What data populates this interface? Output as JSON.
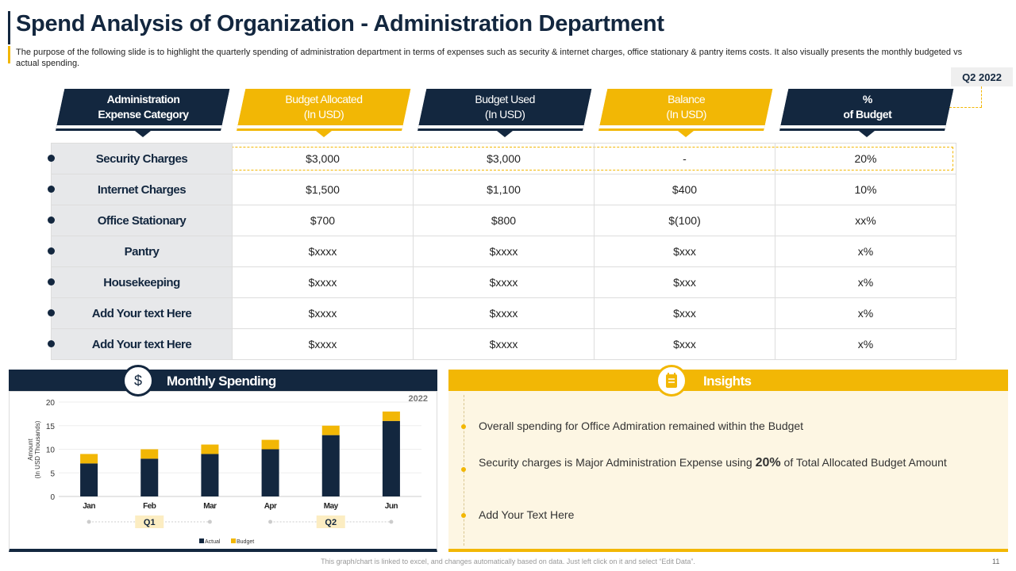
{
  "title": "Spend Analysis of Organization - Administration Department",
  "subtitle": "The purpose of the following slide is to highlight the quarterly spending of administration department in terms of expenses such as security & internet charges, office stationary & pantry items costs. It also visually presents the monthly budgeted vs actual spending.",
  "period_badge": "Q2 2022",
  "table": {
    "headers": [
      {
        "line1": "Administration",
        "line2": "Expense Category"
      },
      {
        "line1": "Budget Allocated",
        "line2": "(In USD)"
      },
      {
        "line1": "Budget Used",
        "line2": "(In USD)"
      },
      {
        "line1": "Balance",
        "line2": "(In USD)"
      },
      {
        "line1": "%",
        "line2": "of Budget"
      }
    ],
    "rows": [
      [
        "Security Charges",
        "$3,000",
        "$3,000",
        "-",
        "20%"
      ],
      [
        "Internet Charges",
        "$1,500",
        "$1,100",
        "$400",
        "10%"
      ],
      [
        "Office Stationary",
        "$700",
        "$800",
        "$(100)",
        "xx%"
      ],
      [
        "Pantry",
        "$xxxx",
        "$xxxx",
        "$xxx",
        "x%"
      ],
      [
        "Housekeeping",
        "$xxxx",
        "$xxxx",
        "$xxx",
        "x%"
      ],
      [
        "Add Your text Here",
        "$xxxx",
        "$xxxx",
        "$xxx",
        "x%"
      ],
      [
        "Add Your text Here",
        "$xxxx",
        "$xxxx",
        "$xxx",
        "x%"
      ]
    ]
  },
  "monthly": {
    "title": "Monthly Spending",
    "icon": "money-bag-icon"
  },
  "insights": {
    "title": "Insights",
    "icon": "notepad-icon",
    "items": [
      {
        "pre": "Overall spending for Office Admiration remained within the Budget",
        "bold": "",
        "post": ""
      },
      {
        "pre": "Security charges is Major Administration Expense using ",
        "bold": "20%",
        "post": " of Total Allocated Budget Amount"
      },
      {
        "pre": "Add Your Text Here",
        "bold": "",
        "post": ""
      }
    ]
  },
  "chart_data": {
    "type": "bar",
    "stacked": true,
    "categories": [
      "Jan",
      "Feb",
      "Mar",
      "Apr",
      "May",
      "Jun"
    ],
    "series": [
      {
        "name": "Actual",
        "values": [
          7,
          8,
          9,
          10,
          13,
          16
        ],
        "color": "#13273f"
      },
      {
        "name": "Budget",
        "values": [
          2,
          2,
          2,
          2,
          2,
          2
        ],
        "color": "#f2b705"
      }
    ],
    "ylabel": "Amount (In USD Thousands)",
    "ylim": [
      0,
      20
    ],
    "yticks": [
      0,
      5,
      10,
      15,
      20
    ],
    "annotation": "2022",
    "groups": [
      "Q1",
      "Q2"
    ],
    "legend": "bottom",
    "grid": true
  },
  "footer": "This graph/chart is linked to excel, and changes automatically based on data. Just left click on it and select “Edit Data”.",
  "page_number": "11",
  "colors": {
    "navy": "#13273f",
    "yellow": "#f2b705"
  }
}
